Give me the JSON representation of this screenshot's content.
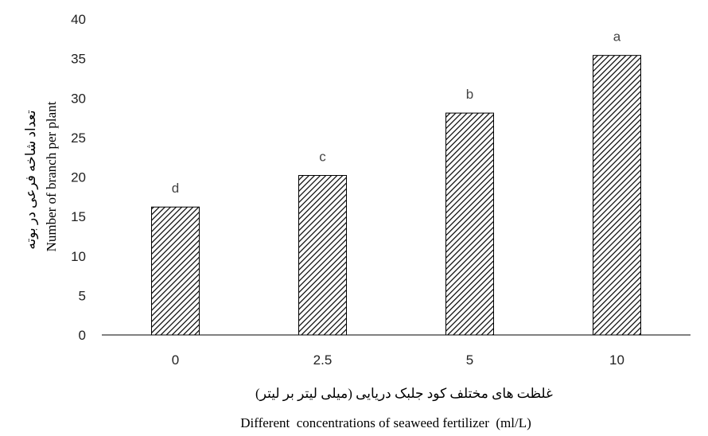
{
  "chart_data": {
    "type": "bar",
    "categories": [
      "0",
      "2.5",
      "5",
      "10"
    ],
    "values": [
      16.2,
      20.2,
      28.1,
      35.4
    ],
    "data_labels": [
      "d",
      "c",
      "b",
      "a"
    ],
    "ylabel_fa": "تعداد شاخه فرعی در بوته",
    "ylabel_en": "Number of branch per plant",
    "xlabel_fa": "غلظت های مختلف کود جلبک دریایی (میلی لیتر بر لیتر)",
    "xlabel_en": "Different  concentrations of seaweed fertilizer  (ml/L)",
    "ylim": [
      0,
      40
    ],
    "yticks": [
      0,
      5,
      10,
      15,
      20,
      25,
      30,
      35,
      40
    ],
    "grid": false,
    "bar_pattern": "diagonal-hatch",
    "colors": {
      "bar_stroke": "#000000",
      "hatch": "#000000",
      "axis": "#000000"
    }
  }
}
